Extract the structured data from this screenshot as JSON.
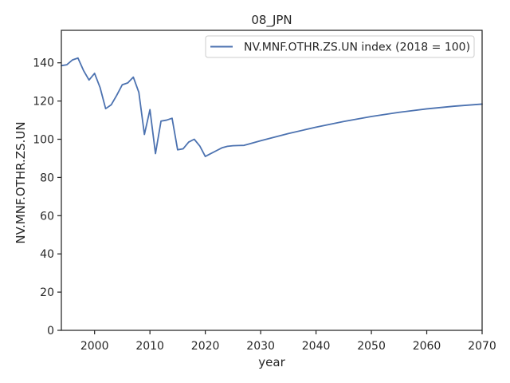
{
  "chart_data": {
    "type": "line",
    "title": "08_JPN",
    "xlabel": "year",
    "ylabel": "NV.MNF.OTHR.ZS.UN",
    "xlim": [
      1994,
      2070
    ],
    "ylim": [
      0,
      157
    ],
    "xticks": [
      2000,
      2010,
      2020,
      2030,
      2040,
      2050,
      2060,
      2070
    ],
    "yticks": [
      0,
      20,
      40,
      60,
      80,
      100,
      120,
      140
    ],
    "grid": false,
    "legend_position": "top-right",
    "series": [
      {
        "name": "NV.MNF.OTHR.ZS.UN index (2018 = 100)",
        "color": "#4c72b0",
        "x": [
          1994,
          1995,
          1996,
          1997,
          1998,
          1999,
          2000,
          2001,
          2002,
          2003,
          2004,
          2005,
          2006,
          2007,
          2008,
          2009,
          2010,
          2011,
          2012,
          2013,
          2014,
          2015,
          2016,
          2017,
          2018,
          2019,
          2020,
          2021,
          2022,
          2023,
          2024,
          2025,
          2026,
          2027,
          2028,
          2030,
          2035,
          2040,
          2045,
          2050,
          2055,
          2060,
          2065,
          2070
        ],
        "y": [
          138.5,
          139,
          141.5,
          142.5,
          136,
          131,
          134.5,
          127,
          116,
          118,
          123,
          128.5,
          129.5,
          132.5,
          124.5,
          102.5,
          115.5,
          92.5,
          109.5,
          110,
          111,
          94.5,
          95,
          98.5,
          100,
          96.5,
          91,
          92.5,
          94,
          95.5,
          96.3,
          96.6,
          96.7,
          96.8,
          97.6,
          99.2,
          103,
          106.3,
          109.3,
          111.9,
          114.1,
          115.9,
          117.3,
          118.4
        ]
      }
    ]
  }
}
